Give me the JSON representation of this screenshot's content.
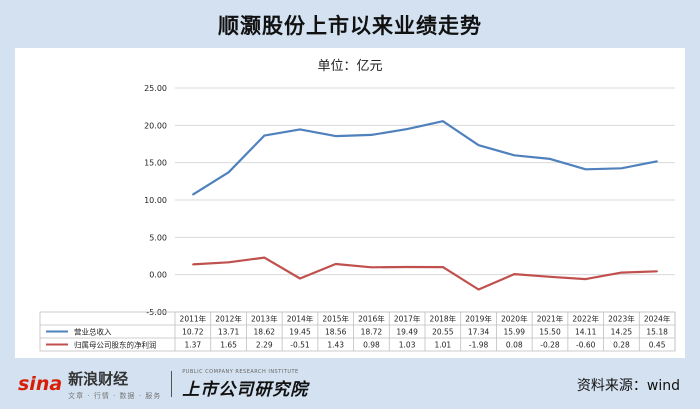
{
  "title": "顺灏股份上市以来业绩走势",
  "footer": {
    "sina_mark": "sina",
    "sina_name": "新浪财经",
    "sina_sub": "文章 · 行情 · 数据 · 服务",
    "brand_tagline": "PUBLIC COMPANY RESEARCH INSTITUTE",
    "brand_name": "上市公司研究院",
    "source": "资料来源：wind"
  },
  "colors": {
    "series1": "#4f81bd",
    "series2": "#c0504d",
    "background": "#d3e1f1"
  },
  "chart_data": {
    "type": "line",
    "title": "单位：亿元",
    "categories": [
      "2011年",
      "2012年",
      "2013年",
      "2014年",
      "2015年",
      "2016年",
      "2017年",
      "2018年",
      "2019年",
      "2020年",
      "2021年",
      "2022年",
      "2023年",
      "2024年"
    ],
    "series": [
      {
        "name": "营业总收入",
        "values": [
          10.72,
          13.71,
          18.62,
          19.45,
          18.56,
          18.72,
          19.49,
          20.55,
          17.34,
          15.99,
          15.5,
          14.11,
          14.25,
          15.18
        ],
        "labels": [
          "10.72",
          "13.71",
          "18.62",
          "19.45",
          "18.56",
          "18.72",
          "19.49",
          "20.55",
          "17.34",
          "15.99",
          "15.50",
          "14.11",
          "14.25",
          "15.18"
        ]
      },
      {
        "name": "归属母公司股东的净利润",
        "values": [
          1.37,
          1.65,
          2.29,
          -0.51,
          1.43,
          0.98,
          1.03,
          1.01,
          -1.98,
          0.08,
          -0.28,
          -0.6,
          0.28,
          0.45
        ],
        "labels": [
          "1.37",
          "1.65",
          "2.29",
          "-0.51",
          "1.43",
          "0.98",
          "1.03",
          "1.01",
          "-1.98",
          "0.08",
          "-0.28",
          "-0.60",
          "0.28",
          "0.45"
        ]
      }
    ],
    "yticks": [
      "25.00",
      "20.00",
      "15.00",
      "10.00",
      "5.00",
      "0.00",
      "-5.00"
    ],
    "ylim": [
      -5,
      25
    ],
    "data_table": true
  }
}
